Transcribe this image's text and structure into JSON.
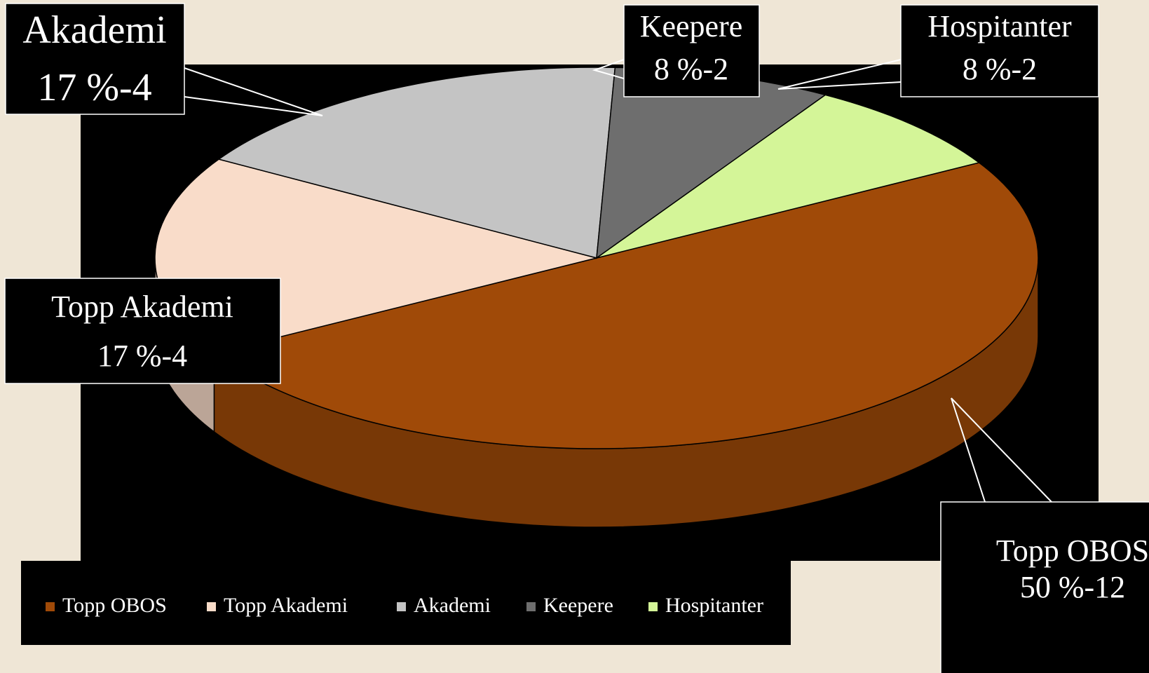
{
  "chart_data": {
    "type": "pie3d",
    "categories": [
      "Topp OBOS",
      "Topp Akademi",
      "Akademi",
      "Keepere",
      "Hospitanter"
    ],
    "values": [
      50,
      17,
      17,
      8,
      8
    ],
    "value_labels": [
      "50 %-12",
      "17 %-4",
      "17 %-4",
      "8 %-2",
      "8 %-2"
    ],
    "colors": [
      "#a04a08",
      "#f9dcc9",
      "#c4c4c4",
      "#6e6e6e",
      "#d4f598"
    ],
    "legend": "bottom"
  }
}
